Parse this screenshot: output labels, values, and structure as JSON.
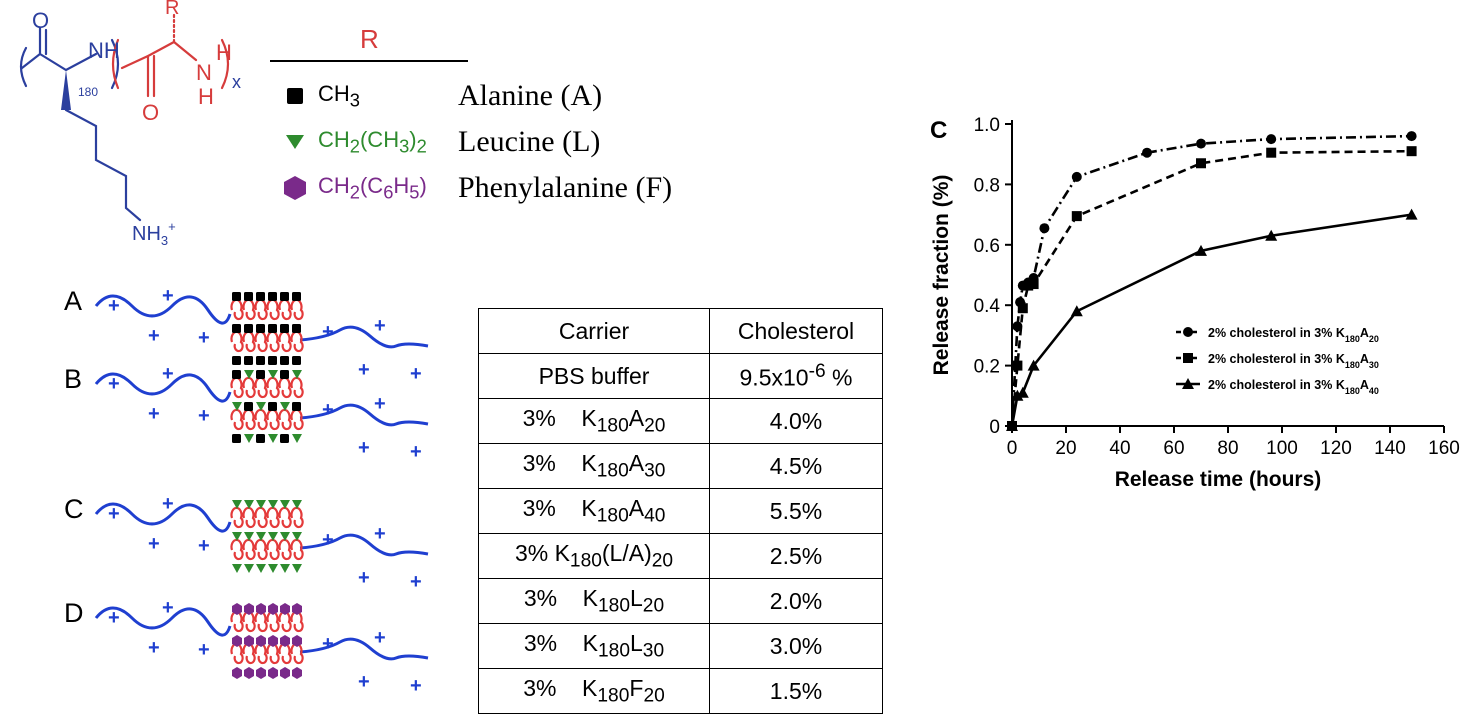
{
  "structure": {
    "r_label": "R",
    "n_subscript": "180",
    "x_subscript": "x",
    "nh_blue": "N",
    "h_blue": "H",
    "nh_red": "N",
    "h_red_top": "H",
    "h_red_bottom": "H",
    "o_top": "O",
    "o_bottom": "O",
    "amine": "NH",
    "amine_sub": "3",
    "amine_sup": "+"
  },
  "r_legend": {
    "header": "R",
    "items": [
      {
        "symbol": "square",
        "color": "#000000",
        "formula_html": "CH<sub>3</sub>",
        "formula": "CH3",
        "name": "Alanine (A)"
      },
      {
        "symbol": "triangle",
        "color": "#2e8b2e",
        "formula_html": "CH<sub>2</sub>(CH<sub>3</sub>)<sub>2</sub>",
        "formula": "CH2(CH3)2",
        "name": "Leucine (L)"
      },
      {
        "symbol": "hexagon",
        "color": "#7a2a8a",
        "formula_html": "CH<sub>2</sub>(C<sub>6</sub>H<sub>5</sub>)",
        "formula": "CH2(C6H5)",
        "name": "Phenylalanine (F)"
      }
    ]
  },
  "chains": [
    {
      "label": "A",
      "pattern": "A"
    },
    {
      "label": "B",
      "pattern": "B"
    },
    {
      "label": "C",
      "pattern": "C"
    },
    {
      "label": "D",
      "pattern": "D"
    }
  ],
  "chain_plus": "+",
  "table": {
    "headers": [
      "Carrier",
      "Cholesterol"
    ],
    "rows": [
      {
        "carrier": "PBS buffer",
        "carrier_html": "PBS buffer",
        "cholesterol_html": "9.5x10<sup>-6</sup> %",
        "cholesterol": "9.5x10-6 %"
      },
      {
        "carrier": "3% K180A20",
        "carrier_html": "3%&nbsp;&nbsp;&nbsp;&nbsp;K<sub>180</sub>A<sub>20</sub>",
        "cholesterol_html": "4.0%",
        "cholesterol": "4.0%"
      },
      {
        "carrier": "3% K180A30",
        "carrier_html": "3%&nbsp;&nbsp;&nbsp;&nbsp;K<sub>180</sub>A<sub>30</sub>",
        "cholesterol_html": "4.5%",
        "cholesterol": "4.5%"
      },
      {
        "carrier": "3% K180A40",
        "carrier_html": "3%&nbsp;&nbsp;&nbsp;&nbsp;K<sub>180</sub>A<sub>40</sub>",
        "cholesterol_html": "5.5%",
        "cholesterol": "5.5%"
      },
      {
        "carrier": "3% K180(L/A)20",
        "carrier_html": "3% K<sub>180</sub>(L/A)<sub>20</sub>",
        "cholesterol_html": "2.5%",
        "cholesterol": "2.5%"
      },
      {
        "carrier": "3% K180L20",
        "carrier_html": "3%&nbsp;&nbsp;&nbsp;&nbsp;K<sub>180</sub>L<sub>20</sub>",
        "cholesterol_html": "2.0%",
        "cholesterol": "2.0%"
      },
      {
        "carrier": "3% K180L30",
        "carrier_html": "3%&nbsp;&nbsp;&nbsp;&nbsp;K<sub>180</sub>L<sub>30</sub>",
        "cholesterol_html": "3.0%",
        "cholesterol": "3.0%"
      },
      {
        "carrier": "3% K180F20",
        "carrier_html": "3%&nbsp;&nbsp;&nbsp;&nbsp;K<sub>180</sub>F<sub>20</sub>",
        "cholesterol_html": "1.5%",
        "cholesterol": "1.5%"
      }
    ]
  },
  "chart_data": {
    "type": "line",
    "panel_letter": "C",
    "title": "",
    "xlabel": "Release time (hours)",
    "ylabel": "Release fraction (%)",
    "xlim": [
      0,
      160
    ],
    "ylim": [
      0,
      1.0
    ],
    "xticks": [
      0,
      20,
      40,
      60,
      80,
      100,
      120,
      140,
      160
    ],
    "yticks": [
      0,
      0.2,
      0.4,
      0.6,
      0.8,
      1.0
    ],
    "ytick_labels": [
      "0",
      "0.2",
      "0.4",
      "0.6",
      "0.8",
      "1.0"
    ],
    "grid": false,
    "legend_position": "center-right",
    "series": [
      {
        "name": "2% cholesterol in 3% K180A20",
        "name_html": "2% cholesterol in 3% K<tspan baseline-shift=\"sub\" font-size=\"9\">180</tspan>A<tspan baseline-shift=\"sub\" font-size=\"9\">20</tspan>",
        "marker": "circle",
        "dash": "10,4,2,4",
        "x": [
          0,
          2,
          3,
          4,
          6,
          8,
          12,
          24,
          50,
          70,
          96,
          148
        ],
        "y": [
          0.0,
          0.33,
          0.41,
          0.465,
          0.475,
          0.49,
          0.655,
          0.825,
          0.905,
          0.935,
          0.95,
          0.96
        ]
      },
      {
        "name": "2% cholesterol in 3% K180A30",
        "name_html": "2% cholesterol in 3% K<tspan baseline-shift=\"sub\" font-size=\"9\">180</tspan>A<tspan baseline-shift=\"sub\" font-size=\"9\">30</tspan>",
        "marker": "square",
        "dash": "8,5",
        "x": [
          0,
          2,
          4,
          6,
          8,
          24,
          70,
          96,
          148
        ],
        "y": [
          0.0,
          0.2,
          0.39,
          0.465,
          0.47,
          0.695,
          0.87,
          0.905,
          0.91
        ]
      },
      {
        "name": "2% cholesterol in 3% K180A40",
        "name_html": "2% cholesterol in 3% K<tspan baseline-shift=\"sub\" font-size=\"9\">180</tspan>A<tspan baseline-shift=\"sub\" font-size=\"9\">40</tspan>",
        "marker": "triangle",
        "dash": "",
        "x": [
          0,
          2,
          4,
          8,
          24,
          70,
          96,
          148
        ],
        "y": [
          0.0,
          0.1,
          0.11,
          0.2,
          0.38,
          0.58,
          0.63,
          0.7
        ]
      }
    ]
  }
}
